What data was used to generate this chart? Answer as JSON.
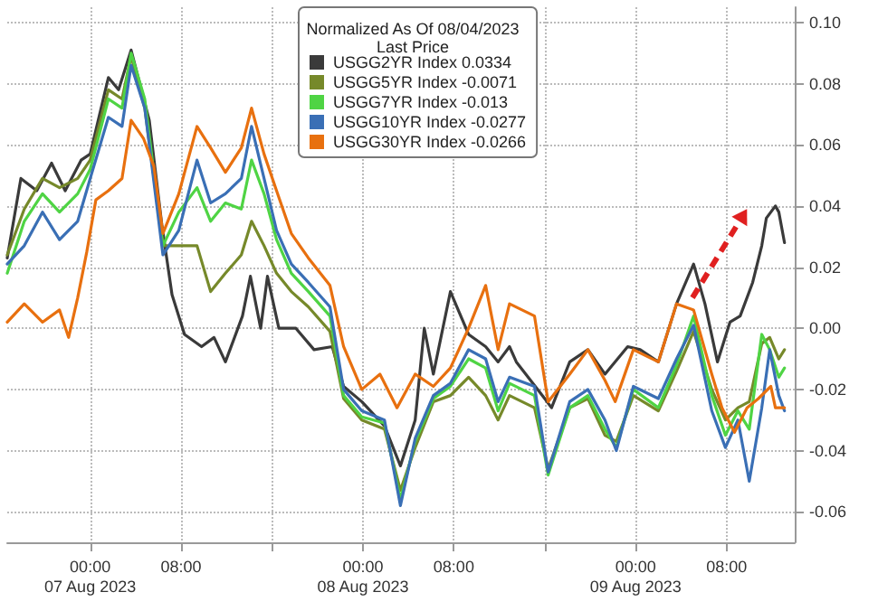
{
  "chart_data": {
    "type": "line",
    "legend_title": "Normalized As Of 08/04/2023\nLast Price",
    "xlim": [
      "2023-08-06T16:42",
      "2023-08-09T14:00"
    ],
    "xticks": [
      {
        "value": "2023-08-07T00:00",
        "label": "00:00\n07 Aug 2023"
      },
      {
        "value": "2023-08-07T08:00",
        "label": "08:00"
      },
      {
        "value": "2023-08-07T16:00",
        "label": null
      },
      {
        "value": "2023-08-08T00:00",
        "label": "00:00\n08 Aug 2023"
      },
      {
        "value": "2023-08-08T08:00",
        "label": "08:00"
      },
      {
        "value": "2023-08-08T16:00",
        "label": null
      },
      {
        "value": "2023-08-09T00:00",
        "label": "00:00\n09 Aug 2023"
      },
      {
        "value": "2023-08-09T08:00",
        "label": "08:00"
      }
    ],
    "ylim": [
      -0.07,
      0.105
    ],
    "yticks": [
      {
        "value": -0.06,
        "label": "-0.06"
      },
      {
        "value": -0.04,
        "label": "-0.04"
      },
      {
        "value": -0.02,
        "label": "-0.02"
      },
      {
        "value": 0,
        "label": "0.00"
      },
      {
        "value": 0.02,
        "label": "0.02"
      },
      {
        "value": 0.04,
        "label": "0.04"
      },
      {
        "value": 0.06,
        "label": "0.06"
      },
      {
        "value": 0.08,
        "label": "0.08"
      },
      {
        "value": 0.1,
        "label": "0.10"
      }
    ],
    "grid": true,
    "legend": "top",
    "marker": "none",
    "line_style": "solid",
    "series": [
      {
        "name": "USGG2YR Index 0.0334",
        "color": "#3a3a3a",
        "x": [
          "2023-08-06T16:42",
          "2023-08-06T17:54",
          "2023-08-06T19:18",
          "2023-08-06T20:36",
          "2023-08-06T21:48",
          "2023-08-06T23:12",
          "2023-08-07T00:00",
          "2023-08-07T01:36",
          "2023-08-07T02:30",
          "2023-08-07T03:36",
          "2023-08-07T05:12",
          "2023-08-07T06:18",
          "2023-08-07T07:12",
          "2023-08-07T08:18",
          "2023-08-07T09:48",
          "2023-08-07T10:54",
          "2023-08-07T11:54",
          "2023-08-07T13:24",
          "2023-08-07T14:06",
          "2023-08-07T15:00",
          "2023-08-07T15:36",
          "2023-08-07T16:36",
          "2023-08-07T18:06",
          "2023-08-07T19:42",
          "2023-08-07T21:18",
          "2023-08-07T22:18",
          "2023-08-07T23:54",
          "2023-08-08T01:54",
          "2023-08-08T03:18",
          "2023-08-08T04:36",
          "2023-08-08T05:24",
          "2023-08-08T06:12",
          "2023-08-08T07:42",
          "2023-08-08T09:18",
          "2023-08-08T10:48",
          "2023-08-08T11:54",
          "2023-08-08T12:54",
          "2023-08-08T13:30",
          "2023-08-08T16:00",
          "2023-08-08T16:36",
          "2023-08-08T18:12",
          "2023-08-08T19:48",
          "2023-08-08T21:18",
          "2023-08-08T23:18",
          "2023-08-09T00:24",
          "2023-08-09T02:00",
          "2023-08-09T03:36",
          "2023-08-09T05:06",
          "2023-08-09T06:06",
          "2023-08-09T07:12",
          "2023-08-09T08:18",
          "2023-08-09T09:12",
          "2023-08-09T10:18",
          "2023-08-09T11:06",
          "2023-08-09T11:30",
          "2023-08-09T12:18",
          "2023-08-09T12:36",
          "2023-08-09T13:06"
        ],
        "values": [
          0.023,
          0.049,
          0.045,
          0.054,
          0.045,
          0.055,
          0.057,
          0.082,
          0.078,
          0.091,
          0.068,
          0.034,
          0.011,
          -0.002,
          -0.006,
          -0.003,
          -0.011,
          0.004,
          0.017,
          0,
          0.017,
          0,
          0,
          -0.007,
          -0.006,
          -0.019,
          -0.024,
          -0.032,
          -0.045,
          -0.03,
          0,
          -0.015,
          0.012,
          -0.002,
          -0.006,
          -0.011,
          -0.006,
          -0.011,
          -0.023,
          -0.026,
          -0.011,
          -0.007,
          -0.015,
          -0.006,
          -0.007,
          -0.011,
          0.008,
          0.021,
          0.008,
          -0.011,
          0.002,
          0.004,
          0.015,
          0.027,
          0.036,
          0.04,
          0.038,
          0.028
        ]
      },
      {
        "name": "USGG5YR Index -0.0071",
        "color": "#76892a",
        "x": [
          "2023-08-06T16:42",
          "2023-08-06T18:12",
          "2023-08-06T19:48",
          "2023-08-06T21:18",
          "2023-08-06T22:54",
          "2023-08-07T00:00",
          "2023-08-07T01:36",
          "2023-08-07T02:48",
          "2023-08-07T03:36",
          "2023-08-07T04:48",
          "2023-08-07T06:24",
          "2023-08-07T07:48",
          "2023-08-07T09:24",
          "2023-08-07T10:36",
          "2023-08-07T11:54",
          "2023-08-07T13:18",
          "2023-08-07T14:12",
          "2023-08-07T15:18",
          "2023-08-07T16:24",
          "2023-08-07T17:42",
          "2023-08-07T19:12",
          "2023-08-07T21:06",
          "2023-08-07T22:18",
          "2023-08-07T23:54",
          "2023-08-08T01:54",
          "2023-08-08T03:18",
          "2023-08-08T04:36",
          "2023-08-08T06:12",
          "2023-08-08T07:42",
          "2023-08-08T09:18",
          "2023-08-08T10:48",
          "2023-08-08T11:54",
          "2023-08-08T12:54",
          "2023-08-08T15:06",
          "2023-08-08T16:18",
          "2023-08-08T18:12",
          "2023-08-08T19:48",
          "2023-08-08T21:18",
          "2023-08-08T22:18",
          "2023-08-08T23:48",
          "2023-08-09T02:00",
          "2023-08-09T03:36",
          "2023-08-09T05:06",
          "2023-08-09T06:42",
          "2023-08-09T07:54",
          "2023-08-09T09:00",
          "2023-08-09T10:00",
          "2023-08-09T11:06",
          "2023-08-09T11:48",
          "2023-08-09T12:36",
          "2023-08-09T13:06"
        ],
        "values": [
          0.024,
          0.039,
          0.049,
          0.046,
          0.049,
          0.055,
          0.078,
          0.075,
          0.089,
          0.072,
          0.027,
          0.027,
          0.027,
          0.012,
          0.018,
          0.024,
          0.035,
          0.027,
          0.018,
          0.012,
          0.007,
          -0.001,
          -0.023,
          -0.03,
          -0.033,
          -0.053,
          -0.039,
          -0.024,
          -0.022,
          -0.016,
          -0.022,
          -0.03,
          -0.022,
          -0.026,
          -0.046,
          -0.026,
          -0.023,
          -0.035,
          -0.037,
          -0.022,
          -0.027,
          -0.014,
          -0.001,
          -0.02,
          -0.03,
          -0.026,
          -0.024,
          -0.005,
          -0.003,
          -0.01,
          -0.007
        ]
      },
      {
        "name": "USGG7YR Index -0.013",
        "color": "#4fd444",
        "x": [
          "2023-08-06T16:42",
          "2023-08-06T18:12",
          "2023-08-06T19:48",
          "2023-08-06T21:18",
          "2023-08-06T22:54",
          "2023-08-07T00:00",
          "2023-08-07T01:36",
          "2023-08-07T02:48",
          "2023-08-07T03:36",
          "2023-08-07T04:48",
          "2023-08-07T06:24",
          "2023-08-07T07:48",
          "2023-08-07T09:24",
          "2023-08-07T10:36",
          "2023-08-07T11:54",
          "2023-08-07T13:18",
          "2023-08-07T14:12",
          "2023-08-07T15:18",
          "2023-08-07T16:24",
          "2023-08-07T17:42",
          "2023-08-07T19:12",
          "2023-08-07T21:06",
          "2023-08-07T22:18",
          "2023-08-07T23:54",
          "2023-08-08T01:54",
          "2023-08-08T03:18",
          "2023-08-08T04:36",
          "2023-08-08T06:12",
          "2023-08-08T07:42",
          "2023-08-08T09:18",
          "2023-08-08T10:48",
          "2023-08-08T11:54",
          "2023-08-08T12:54",
          "2023-08-08T15:06",
          "2023-08-08T16:18",
          "2023-08-08T18:12",
          "2023-08-08T19:48",
          "2023-08-08T21:18",
          "2023-08-08T22:18",
          "2023-08-08T23:48",
          "2023-08-09T02:00",
          "2023-08-09T03:36",
          "2023-08-09T05:06",
          "2023-08-09T06:42",
          "2023-08-09T07:54",
          "2023-08-09T09:00",
          "2023-08-09T10:00",
          "2023-08-09T11:06",
          "2023-08-09T11:48",
          "2023-08-09T12:36",
          "2023-08-09T13:06"
        ],
        "values": [
          0.018,
          0.035,
          0.044,
          0.038,
          0.044,
          0.052,
          0.075,
          0.072,
          0.09,
          0.075,
          0.027,
          0.038,
          0.046,
          0.035,
          0.041,
          0.039,
          0.055,
          0.044,
          0.029,
          0.018,
          0.012,
          0.004,
          -0.022,
          -0.029,
          -0.031,
          -0.056,
          -0.037,
          -0.023,
          -0.019,
          -0.01,
          -0.013,
          -0.027,
          -0.018,
          -0.022,
          -0.048,
          -0.026,
          -0.022,
          -0.033,
          -0.039,
          -0.02,
          -0.026,
          -0.012,
          0.004,
          -0.022,
          -0.035,
          -0.027,
          -0.033,
          -0.002,
          -0.007,
          -0.016,
          -0.013
        ]
      },
      {
        "name": "USGG10YR Index -0.0277",
        "color": "#3a6fb5",
        "x": [
          "2023-08-06T16:42",
          "2023-08-06T18:12",
          "2023-08-06T19:48",
          "2023-08-06T21:18",
          "2023-08-06T22:54",
          "2023-08-07T00:00",
          "2023-08-07T01:36",
          "2023-08-07T02:48",
          "2023-08-07T03:36",
          "2023-08-07T04:48",
          "2023-08-07T06:24",
          "2023-08-07T07:48",
          "2023-08-07T09:24",
          "2023-08-07T10:36",
          "2023-08-07T11:54",
          "2023-08-07T13:18",
          "2023-08-07T14:12",
          "2023-08-07T15:18",
          "2023-08-07T16:24",
          "2023-08-07T17:42",
          "2023-08-07T19:12",
          "2023-08-07T21:06",
          "2023-08-07T22:18",
          "2023-08-07T23:54",
          "2023-08-08T01:54",
          "2023-08-08T03:18",
          "2023-08-08T04:36",
          "2023-08-08T06:12",
          "2023-08-08T07:42",
          "2023-08-08T09:18",
          "2023-08-08T10:48",
          "2023-08-08T11:54",
          "2023-08-08T12:54",
          "2023-08-08T15:06",
          "2023-08-08T16:18",
          "2023-08-08T18:12",
          "2023-08-08T19:48",
          "2023-08-08T21:18",
          "2023-08-08T22:18",
          "2023-08-08T23:48",
          "2023-08-09T02:00",
          "2023-08-09T03:36",
          "2023-08-09T05:06",
          "2023-08-09T06:42",
          "2023-08-09T07:54",
          "2023-08-09T09:00",
          "2023-08-09T10:00",
          "2023-08-09T11:06",
          "2023-08-09T11:48",
          "2023-08-09T12:36",
          "2023-08-09T13:06"
        ],
        "values": [
          0.021,
          0.027,
          0.038,
          0.029,
          0.035,
          0.049,
          0.069,
          0.066,
          0.086,
          0.072,
          0.024,
          0.032,
          0.055,
          0.041,
          0.044,
          0.049,
          0.066,
          0.049,
          0.032,
          0.021,
          0.015,
          0.007,
          -0.02,
          -0.027,
          -0.03,
          -0.058,
          -0.036,
          -0.022,
          -0.018,
          -0.007,
          -0.01,
          -0.024,
          -0.016,
          -0.019,
          -0.047,
          -0.024,
          -0.02,
          -0.03,
          -0.04,
          -0.019,
          -0.023,
          -0.01,
          0.001,
          -0.027,
          -0.039,
          -0.03,
          -0.05,
          -0.026,
          -0.007,
          -0.022,
          -0.027
        ]
      },
      {
        "name": "USGG30YR Index -0.0266",
        "color": "#e8700f",
        "x": [
          "2023-08-06T16:42",
          "2023-08-06T18:12",
          "2023-08-06T19:48",
          "2023-08-06T21:18",
          "2023-08-06T22:06",
          "2023-08-06T22:54",
          "2023-08-06T23:42",
          "2023-08-07T00:30",
          "2023-08-07T01:36",
          "2023-08-07T02:48",
          "2023-08-07T03:36",
          "2023-08-07T04:42",
          "2023-08-07T05:36",
          "2023-08-07T06:24",
          "2023-08-07T07:48",
          "2023-08-07T09:24",
          "2023-08-07T10:36",
          "2023-08-07T11:54",
          "2023-08-07T13:18",
          "2023-08-07T14:12",
          "2023-08-07T15:18",
          "2023-08-07T16:24",
          "2023-08-07T17:42",
          "2023-08-07T19:12",
          "2023-08-07T21:06",
          "2023-08-07T22:18",
          "2023-08-07T23:54",
          "2023-08-08T01:30",
          "2023-08-08T03:00",
          "2023-08-08T04:36",
          "2023-08-08T06:12",
          "2023-08-08T07:42",
          "2023-08-08T09:18",
          "2023-08-08T10:48",
          "2023-08-08T11:54",
          "2023-08-08T12:54",
          "2023-08-08T15:06",
          "2023-08-08T16:18",
          "2023-08-08T18:12",
          "2023-08-08T19:48",
          "2023-08-08T21:18",
          "2023-08-08T22:12",
          "2023-08-08T23:48",
          "2023-08-09T02:00",
          "2023-08-09T03:36",
          "2023-08-09T05:06",
          "2023-08-09T06:42",
          "2023-08-09T07:36",
          "2023-08-09T08:42",
          "2023-08-09T09:48",
          "2023-08-09T10:48",
          "2023-08-09T11:54",
          "2023-08-09T12:18",
          "2023-08-09T13:06"
        ],
        "values": [
          0.002,
          0.008,
          0.002,
          0.006,
          -0.003,
          0.01,
          0.025,
          0.042,
          0.045,
          0.049,
          0.068,
          0.062,
          0.053,
          0.031,
          0.044,
          0.066,
          0.059,
          0.051,
          0.059,
          0.072,
          0.057,
          0.045,
          0.031,
          0.023,
          0.014,
          -0.006,
          -0.02,
          -0.015,
          -0.026,
          -0.015,
          -0.019,
          -0.013,
          0,
          0.014,
          -0.007,
          0.008,
          0.004,
          -0.024,
          -0.015,
          -0.007,
          -0.017,
          -0.024,
          -0.007,
          -0.011,
          0.008,
          0.006,
          -0.015,
          -0.026,
          -0.034,
          -0.026,
          -0.023,
          -0.019,
          -0.026,
          -0.026
        ]
      }
    ]
  }
}
